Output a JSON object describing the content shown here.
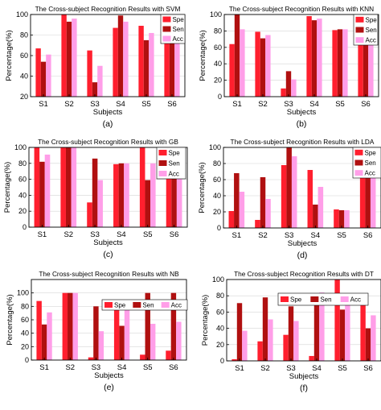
{
  "colors": {
    "Spe": "#ff1f2e",
    "Sen": "#b01010",
    "Acc": "#ff9ee8"
  },
  "chart_data": [
    {
      "type": "bar",
      "panel_label": "(a)",
      "title": "The Cross-subject Recognition Results with SVM",
      "xlabel": "Subjects",
      "ylabel": "Percentage(%)",
      "ylim": [
        20,
        100
      ],
      "yticks": [
        20,
        40,
        60,
        80,
        100
      ],
      "legend_position": "top-right",
      "categories": [
        "S1",
        "S2",
        "S3",
        "S4",
        "S5",
        "S6"
      ],
      "series": [
        {
          "name": "Spe",
          "values": [
            67,
            100,
            65,
            87,
            89,
            85
          ]
        },
        {
          "name": "Sen",
          "values": [
            54,
            93,
            34,
            99,
            75,
            99
          ]
        },
        {
          "name": "Acc",
          "values": [
            61,
            96,
            50,
            93,
            82,
            92
          ]
        }
      ]
    },
    {
      "type": "bar",
      "panel_label": "(b)",
      "title": "The Cross-subject Recognition Results with KNN",
      "xlabel": "Subjects",
      "ylabel": "Percentage(%)",
      "ylim": [
        0,
        100
      ],
      "yticks": [
        0,
        20,
        40,
        60,
        80,
        100
      ],
      "legend_position": "top-right",
      "categories": [
        "S1",
        "S2",
        "S3",
        "S4",
        "S5",
        "S6"
      ],
      "series": [
        {
          "name": "Spe",
          "values": [
            64,
            79,
            10,
            98,
            81,
            85
          ]
        },
        {
          "name": "Sen",
          "values": [
            100,
            71,
            31,
            93,
            82,
            92
          ]
        },
        {
          "name": "Acc",
          "values": [
            82,
            75,
            21,
            95,
            82,
            88
          ]
        }
      ]
    },
    {
      "type": "bar",
      "panel_label": "(c)",
      "title": "The Cross-subject Recognition Results with GB",
      "xlabel": "Subjects",
      "ylabel": "Percentage(%)",
      "ylim": [
        0,
        100
      ],
      "yticks": [
        0,
        20,
        40,
        60,
        80,
        100
      ],
      "legend_position": "top-right",
      "categories": [
        "S1",
        "S2",
        "S3",
        "S4",
        "S5",
        "S6"
      ],
      "series": [
        {
          "name": "Spe",
          "values": [
            100,
            100,
            31,
            79,
            100,
            63
          ]
        },
        {
          "name": "Sen",
          "values": [
            82,
            100,
            86,
            80,
            59,
            86
          ]
        },
        {
          "name": "Acc",
          "values": [
            91,
            100,
            59,
            80,
            80,
            75
          ]
        }
      ]
    },
    {
      "type": "bar",
      "panel_label": "(d)",
      "title": "The Cross-subject Recognition Results with LDA",
      "xlabel": "Subjects",
      "ylabel": "Percentage(%)",
      "ylim": [
        0,
        100
      ],
      "yticks": [
        0,
        20,
        40,
        60,
        80,
        100
      ],
      "legend_position": "top-right",
      "categories": [
        "S1",
        "S2",
        "S3",
        "S4",
        "S5",
        "S6"
      ],
      "series": [
        {
          "name": "Spe",
          "values": [
            21,
            10,
            78,
            72,
            23,
            80
          ]
        },
        {
          "name": "Sen",
          "values": [
            68,
            63,
            100,
            29,
            22,
            88
          ]
        },
        {
          "name": "Acc",
          "values": [
            45,
            36,
            89,
            51,
            22,
            84
          ]
        }
      ]
    },
    {
      "type": "bar",
      "panel_label": "(e)",
      "title": "The Cross-subject Recognition Results with NB",
      "xlabel": "Subjects",
      "ylabel": "Percentage(%)",
      "ylim": [
        0,
        120
      ],
      "yticks": [
        0,
        20,
        40,
        60,
        80,
        100
      ],
      "legend_position": "top",
      "categories": [
        "S1",
        "S2",
        "S3",
        "S4",
        "S5",
        "S6"
      ],
      "series": [
        {
          "name": "Spe",
          "values": [
            88,
            100,
            4,
            88,
            8,
            14
          ]
        },
        {
          "name": "Sen",
          "values": [
            53,
            100,
            80,
            51,
            100,
            100
          ]
        },
        {
          "name": "Acc",
          "values": [
            71,
            100,
            43,
            76,
            54,
            57
          ]
        }
      ]
    },
    {
      "type": "bar",
      "panel_label": "(f)",
      "title": "The Cross-subject Recognition Results with DT",
      "xlabel": "Subjects",
      "ylabel": "Percentage(%)",
      "ylim": [
        0,
        100
      ],
      "yticks": [
        0,
        20,
        40,
        60,
        80,
        100
      ],
      "legend_position": "top",
      "categories": [
        "S1",
        "S2",
        "S3",
        "S4",
        "S5",
        "S6"
      ],
      "series": [
        {
          "name": "Spe",
          "values": [
            2,
            24,
            32,
            6,
            100,
            72
          ]
        },
        {
          "name": "Sen",
          "values": [
            71,
            78,
            67,
            71,
            63,
            40
          ]
        },
        {
          "name": "Acc",
          "values": [
            37,
            51,
            49,
            84,
            82,
            56
          ]
        }
      ]
    }
  ]
}
